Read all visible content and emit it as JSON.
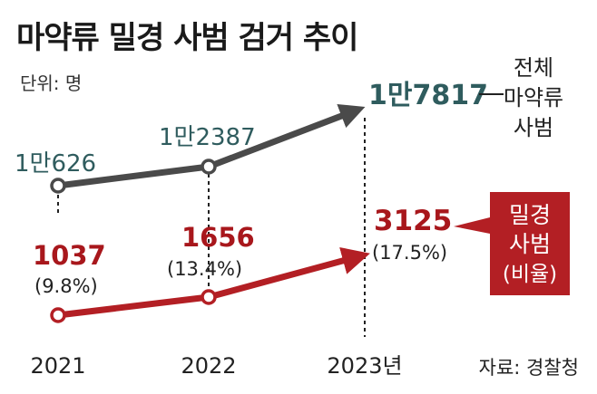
{
  "title": "마약류 밀경 사범 검거 추이",
  "unit": "단위: 명",
  "source": "자료: 경찰청",
  "colors": {
    "total": "#4a4a4a",
    "total_text": "#2f5c5e",
    "police": "#b31f24",
    "police_text": "#a8171c",
    "box": "#b31f24"
  },
  "chart_data": {
    "type": "line",
    "x": [
      "2021",
      "2022",
      "2023년"
    ],
    "ylabel": "",
    "series": [
      {
        "name": "전체 마약류 사범",
        "values": [
          10626,
          12387,
          17817
        ],
        "labels": [
          "1만626",
          "1만2387",
          "1만7817"
        ]
      },
      {
        "name": "밀경 사범 (비율)",
        "values": [
          1037,
          1656,
          3125
        ],
        "labels": [
          "1037",
          "1656",
          "3125"
        ],
        "ratios": [
          "(9.8%)",
          "(13.4%)",
          "(17.5%)"
        ]
      }
    ],
    "legend": {
      "total": [
        "전체",
        "마약류",
        "사범"
      ],
      "police": [
        "밀경",
        "사범",
        "(비율)"
      ]
    }
  }
}
